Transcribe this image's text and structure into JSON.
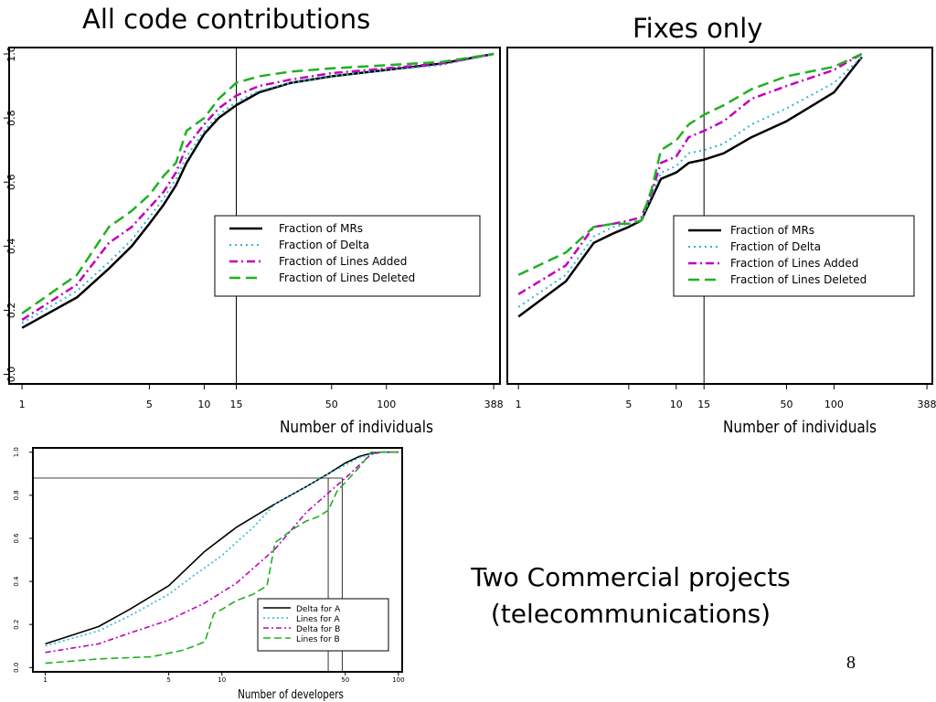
{
  "slide": {
    "title_left": "All code contributions",
    "title_right": "Fixes only",
    "caption_line1": "Two Commercial projects",
    "caption_line2": "(telecommunications)",
    "page_number": "8"
  },
  "colors": {
    "black": "#000000",
    "cyan": "#2ab8d8",
    "magenta": "#c000c0",
    "green": "#20b020"
  },
  "chart_data": [
    {
      "type": "line",
      "title": "All code contributions",
      "xlabel": "Number of individuals",
      "ylabel": "",
      "xscale": "log",
      "xlim": [
        0.85,
        420
      ],
      "ylim": [
        -0.03,
        1.02
      ],
      "xticks": [
        1,
        5,
        10,
        15,
        50,
        100,
        388
      ],
      "yticks": [
        0.0,
        0.2,
        0.4,
        0.6,
        0.8,
        1.0
      ],
      "ytick_labels": [
        "0.0",
        "0.2",
        "0.4",
        "0.6",
        "0.8",
        "1.0"
      ],
      "vline": 15,
      "legend_position": "center-right",
      "series": [
        {
          "name": "Fraction of MRs",
          "color": "#000000",
          "dash": "",
          "width": 2.5,
          "x": [
            1,
            2,
            3,
            4,
            5,
            6,
            7,
            8,
            10,
            12,
            15,
            20,
            30,
            50,
            100,
            200,
            388
          ],
          "y": [
            0.145,
            0.24,
            0.33,
            0.4,
            0.47,
            0.53,
            0.59,
            0.66,
            0.75,
            0.8,
            0.84,
            0.88,
            0.91,
            0.93,
            0.95,
            0.97,
            1.0
          ]
        },
        {
          "name": "Fraction of Delta",
          "color": "#2ab8d8",
          "dash": "2,4",
          "width": 2,
          "x": [
            1,
            2,
            3,
            4,
            5,
            6,
            7,
            8,
            10,
            12,
            15,
            20,
            30,
            50,
            100,
            200,
            388
          ],
          "y": [
            0.16,
            0.26,
            0.35,
            0.42,
            0.49,
            0.55,
            0.61,
            0.68,
            0.76,
            0.81,
            0.85,
            0.885,
            0.91,
            0.93,
            0.95,
            0.965,
            1.0
          ]
        },
        {
          "name": "Fraction of Lines Added",
          "color": "#c000c0",
          "dash": "9,4,2,4",
          "width": 2.5,
          "x": [
            1,
            2,
            3,
            4,
            5,
            6,
            7,
            8,
            10,
            12,
            15,
            20,
            30,
            50,
            100,
            200,
            388
          ],
          "y": [
            0.17,
            0.28,
            0.41,
            0.46,
            0.52,
            0.57,
            0.63,
            0.71,
            0.78,
            0.83,
            0.87,
            0.9,
            0.92,
            0.94,
            0.955,
            0.97,
            1.0
          ]
        },
        {
          "name": "Fraction of Lines Deleted",
          "color": "#20b020",
          "dash": "12,6",
          "width": 2.5,
          "x": [
            1,
            2,
            3,
            4,
            5,
            6,
            7,
            8,
            10,
            12,
            15,
            20,
            30,
            50,
            100,
            200,
            388
          ],
          "y": [
            0.19,
            0.31,
            0.46,
            0.51,
            0.56,
            0.62,
            0.66,
            0.76,
            0.8,
            0.86,
            0.91,
            0.93,
            0.945,
            0.955,
            0.965,
            0.975,
            1.0
          ]
        }
      ]
    },
    {
      "type": "line",
      "title": "Fixes only",
      "xlabel": "Number of individuals",
      "ylabel": "",
      "xscale": "log",
      "xlim": [
        0.85,
        420
      ],
      "ylim": [
        -0.03,
        1.02
      ],
      "xticks": [
        1,
        5,
        10,
        15,
        50,
        100,
        388
      ],
      "yticks": [],
      "ytick_labels": [],
      "vline": 15,
      "legend_position": "center-right",
      "series": [
        {
          "name": "Fraction of MRs",
          "color": "#000000",
          "dash": "",
          "width": 2.5,
          "x": [
            1,
            2,
            3,
            4,
            5,
            6,
            7,
            8,
            10,
            12,
            15,
            20,
            30,
            50,
            100,
            150
          ],
          "y": [
            0.18,
            0.29,
            0.41,
            0.44,
            0.46,
            0.48,
            0.55,
            0.61,
            0.63,
            0.66,
            0.67,
            0.69,
            0.74,
            0.79,
            0.88,
            0.99
          ]
        },
        {
          "name": "Fraction of Delta",
          "color": "#2ab8d8",
          "dash": "2,4",
          "width": 2,
          "x": [
            1,
            2,
            3,
            4,
            5,
            6,
            7,
            8,
            10,
            12,
            15,
            20,
            30,
            50,
            100,
            150
          ],
          "y": [
            0.21,
            0.31,
            0.43,
            0.46,
            0.47,
            0.48,
            0.56,
            0.63,
            0.65,
            0.69,
            0.7,
            0.72,
            0.78,
            0.83,
            0.91,
            0.99
          ]
        },
        {
          "name": "Fraction of Lines Added",
          "color": "#c000c0",
          "dash": "9,4,2,4",
          "width": 2.5,
          "x": [
            1,
            2,
            3,
            4,
            5,
            6,
            7,
            8,
            10,
            12,
            15,
            20,
            30,
            50,
            100,
            150
          ],
          "y": [
            0.25,
            0.34,
            0.46,
            0.47,
            0.48,
            0.49,
            0.57,
            0.66,
            0.68,
            0.74,
            0.76,
            0.79,
            0.86,
            0.9,
            0.95,
            1.0
          ]
        },
        {
          "name": "Fraction of Lines Deleted",
          "color": "#20b020",
          "dash": "12,6",
          "width": 2.5,
          "x": [
            1,
            2,
            3,
            4,
            5,
            6,
            7,
            8,
            10,
            12,
            15,
            20,
            30,
            50,
            100,
            150
          ],
          "y": [
            0.31,
            0.38,
            0.46,
            0.47,
            0.47,
            0.48,
            0.58,
            0.7,
            0.73,
            0.78,
            0.81,
            0.84,
            0.89,
            0.93,
            0.96,
            1.0
          ]
        }
      ]
    },
    {
      "type": "line",
      "title": "",
      "xlabel": "Number of developers",
      "ylabel": "",
      "xscale": "log",
      "xlim": [
        0.85,
        105
      ],
      "ylim": [
        -0.02,
        1.02
      ],
      "xticks": [
        1,
        5,
        10,
        50,
        100
      ],
      "yticks": [
        0.0,
        0.2,
        0.4,
        0.6,
        0.8,
        1.0
      ],
      "ytick_labels": [
        "0.0",
        "0.2",
        "0.4",
        "0.6",
        "0.8",
        "1.0"
      ],
      "hline": 0.88,
      "vlines": [
        40,
        48
      ],
      "legend_position": "bottom-right",
      "series": [
        {
          "name": "Delta for A",
          "color": "#000000",
          "dash": "",
          "width": 1.6,
          "x": [
            1,
            2,
            3,
            5,
            8,
            12,
            20,
            30,
            40,
            50,
            60,
            70,
            80,
            100
          ],
          "y": [
            0.11,
            0.19,
            0.27,
            0.38,
            0.54,
            0.65,
            0.76,
            0.84,
            0.9,
            0.95,
            0.98,
            0.995,
            1.0,
            1.0
          ]
        },
        {
          "name": "Lines for A",
          "color": "#2ab8d8",
          "dash": "2,3",
          "width": 1.6,
          "x": [
            1,
            2,
            3,
            5,
            7,
            10,
            12,
            15,
            20,
            30,
            40,
            50,
            60,
            70,
            80,
            100
          ],
          "y": [
            0.1,
            0.17,
            0.24,
            0.34,
            0.43,
            0.52,
            0.58,
            0.65,
            0.76,
            0.84,
            0.9,
            0.94,
            0.975,
            0.99,
            1.0,
            1.0
          ]
        },
        {
          "name": "Delta for B",
          "color": "#c000c0",
          "dash": "6,3,2,3",
          "width": 1.6,
          "x": [
            1,
            2,
            3,
            5,
            8,
            12,
            20,
            30,
            40,
            50,
            60,
            70,
            80,
            100
          ],
          "y": [
            0.07,
            0.11,
            0.16,
            0.22,
            0.3,
            0.39,
            0.55,
            0.72,
            0.81,
            0.88,
            0.94,
            0.99,
            1.0,
            1.0
          ]
        },
        {
          "name": "Lines for B",
          "color": "#20b020",
          "dash": "8,4",
          "width": 1.6,
          "x": [
            1,
            2,
            4,
            6,
            7,
            8,
            9,
            10,
            12,
            15,
            18,
            20,
            25,
            30,
            35,
            40,
            45,
            50,
            60,
            70,
            100
          ],
          "y": [
            0.02,
            0.04,
            0.05,
            0.08,
            0.1,
            0.12,
            0.25,
            0.27,
            0.31,
            0.34,
            0.38,
            0.58,
            0.64,
            0.68,
            0.7,
            0.73,
            0.82,
            0.86,
            0.93,
            1.0,
            1.0
          ]
        }
      ]
    }
  ]
}
